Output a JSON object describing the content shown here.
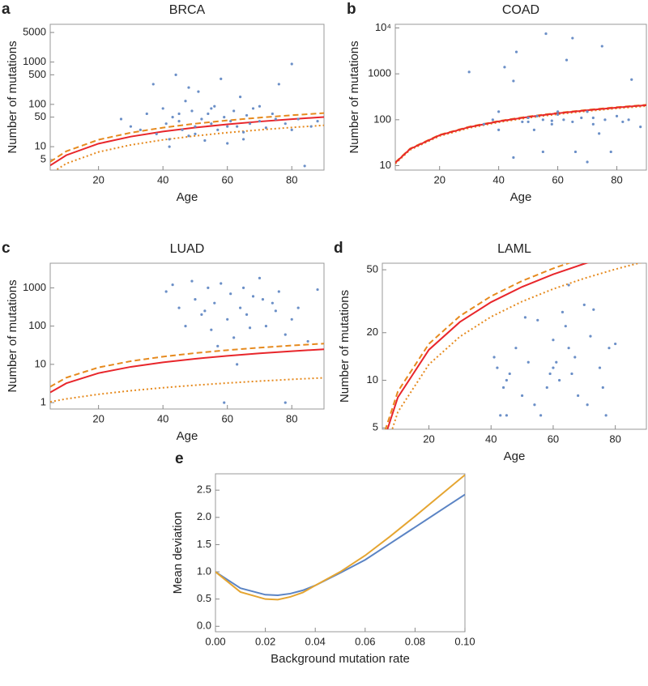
{
  "chart_data": [
    {
      "type": "scatter",
      "panel": "a",
      "title": "BRCA",
      "xlabel": "Age",
      "ylabel": "Number of mutations",
      "log_y": true,
      "color": "#6b8fc7",
      "x": [
        27,
        30,
        33,
        35,
        37,
        38,
        40,
        41,
        42,
        43,
        44,
        45,
        46,
        47,
        48,
        49,
        50,
        51,
        52,
        53,
        54,
        55,
        56,
        57,
        58,
        59,
        60,
        61,
        62,
        63,
        64,
        65,
        66,
        67,
        68,
        70,
        72,
        74,
        76,
        78,
        80,
        82,
        84,
        86,
        88,
        45,
        50,
        55,
        60,
        65,
        70,
        75,
        80,
        42,
        48
      ],
      "values": [
        45,
        30,
        25,
        60,
        300,
        20,
        80,
        35,
        15,
        50,
        500,
        40,
        25,
        120,
        18,
        70,
        30,
        200,
        45,
        14,
        60,
        35,
        90,
        25,
        400,
        50,
        12,
        40,
        70,
        30,
        150,
        22,
        55,
        35,
        80,
        40,
        28,
        60,
        300,
        35,
        900,
        45,
        3.5,
        30,
        40,
        60,
        20,
        80,
        30,
        15,
        90,
        45,
        25,
        10,
        250
      ],
      "fits": [
        {
          "color": "#e8262b",
          "style": "solid",
          "x": [
            5,
            10,
            20,
            30,
            40,
            50,
            60,
            70,
            80,
            90
          ],
          "values": [
            3.6,
            6.3,
            11.8,
            17.3,
            22.8,
            28.3,
            33.8,
            39.3,
            44.8,
            50.3
          ]
        },
        {
          "color": "#e68a1e",
          "style": "dashed",
          "x": [
            5,
            10,
            20,
            30,
            40,
            50,
            60,
            70,
            80,
            90
          ],
          "values": [
            4.4,
            7.8,
            14.6,
            21.4,
            28.2,
            35,
            41.8,
            48.6,
            55.4,
            62.2
          ]
        },
        {
          "color": "#e68a1e",
          "style": "dotted",
          "x": [
            5,
            10,
            20,
            30,
            40,
            50,
            60,
            70,
            80,
            90
          ],
          "values": [
            2.3,
            4,
            7.5,
            11,
            14.5,
            18,
            21.5,
            25,
            28.5,
            32
          ]
        }
      ],
      "xlim": [
        5,
        90
      ],
      "xticks": [
        20,
        40,
        60,
        80
      ],
      "ylim": [
        2.8,
        7800
      ],
      "yticks": [
        5,
        10,
        50,
        100,
        500,
        1000,
        5000
      ]
    },
    {
      "type": "scatter",
      "panel": "b",
      "title": "COAD",
      "xlabel": "Age",
      "ylabel": "Number of mutations",
      "log_y": true,
      "color": "#6b8fc7",
      "x": [
        30,
        35,
        38,
        40,
        42,
        45,
        46,
        48,
        50,
        52,
        53,
        55,
        56,
        58,
        60,
        62,
        63,
        65,
        66,
        68,
        70,
        72,
        74,
        75,
        76,
        78,
        80,
        82,
        85,
        88,
        45,
        55,
        60,
        65,
        70,
        50,
        58,
        72,
        40,
        84
      ],
      "values": [
        1100,
        80,
        100,
        60,
        1400,
        700,
        3000,
        90,
        110,
        60,
        120,
        100,
        7500,
        80,
        130,
        100,
        2000,
        90,
        20,
        110,
        150,
        80,
        50,
        4000,
        100,
        20,
        120,
        90,
        750,
        70,
        15,
        20,
        150,
        6000,
        12,
        90,
        95,
        110,
        150,
        100
      ],
      "fits": [
        {
          "color": "#e68a1e",
          "style": "dotted",
          "x": [
            5,
            10,
            20,
            30,
            40,
            50,
            60,
            70,
            80,
            90
          ],
          "values": [
            11,
            22,
            44,
            66,
            88,
            110,
            132,
            154,
            176,
            198
          ]
        },
        {
          "color": "#e68a1e",
          "style": "dashed",
          "x": [
            5,
            10,
            20,
            30,
            40,
            50,
            60,
            70,
            80,
            90
          ],
          "values": [
            11.8,
            23.5,
            47,
            70.5,
            94,
            117.5,
            141,
            164.5,
            188,
            211.5
          ]
        },
        {
          "color": "#e8262b",
          "style": "solid",
          "x": [
            5,
            10,
            20,
            30,
            40,
            50,
            60,
            70,
            80,
            90
          ],
          "values": [
            11.5,
            23,
            46,
            69,
            92,
            115,
            138,
            161,
            184,
            207
          ]
        }
      ],
      "xlim": [
        5,
        90
      ],
      "xticks": [
        20,
        40,
        60,
        80
      ],
      "ylim": [
        8,
        12000
      ],
      "yticks": [
        10,
        100,
        1000,
        {
          "value": 10000,
          "label": "10⁴"
        }
      ]
    },
    {
      "type": "scatter",
      "panel": "c",
      "title": "LUAD",
      "xlabel": "Age",
      "ylabel": "Number of mutations",
      "log_y": true,
      "color": "#6b8fc7",
      "x": [
        41,
        43,
        45,
        47,
        49,
        50,
        52,
        54,
        55,
        56,
        58,
        60,
        61,
        62,
        64,
        65,
        66,
        68,
        70,
        72,
        74,
        75,
        76,
        78,
        80,
        82,
        85,
        88,
        59,
        78,
        63,
        57,
        67,
        71,
        53
      ],
      "values": [
        800,
        1200,
        300,
        100,
        1500,
        500,
        200,
        1000,
        80,
        400,
        1300,
        150,
        700,
        50,
        300,
        1000,
        200,
        600,
        1800,
        100,
        400,
        250,
        800,
        60,
        150,
        300,
        40,
        900,
        1,
        1,
        10,
        30,
        90,
        500,
        250
      ],
      "fits": [
        {
          "color": "#e8262b",
          "style": "solid",
          "x": [
            5,
            10,
            20,
            30,
            40,
            50,
            60,
            70,
            80,
            90
          ],
          "values": [
            1.85,
            3.2,
            5.9,
            8.6,
            11.3,
            14,
            16.7,
            19.4,
            22.1,
            24.8
          ]
        },
        {
          "color": "#e68a1e",
          "style": "dashed",
          "x": [
            5,
            10,
            20,
            30,
            40,
            50,
            60,
            70,
            80,
            90
          ],
          "values": [
            2.6,
            4.5,
            8.3,
            12.1,
            15.9,
            19.7,
            23.5,
            27.3,
            31.1,
            34.9
          ]
        },
        {
          "color": "#e68a1e",
          "style": "dotted",
          "x": [
            5,
            10,
            20,
            30,
            40,
            50,
            60,
            70,
            80,
            90
          ],
          "values": [
            1.05,
            1.25,
            1.65,
            2.05,
            2.45,
            2.85,
            3.25,
            3.65,
            4.05,
            4.45
          ]
        }
      ],
      "xlim": [
        5,
        90
      ],
      "xticks": [
        20,
        40,
        60,
        80
      ],
      "ylim": [
        0.68,
        4400
      ],
      "yticks": [
        1,
        10,
        100,
        1000
      ]
    },
    {
      "type": "scatter",
      "panel": "d",
      "title": "LAML",
      "xlabel": "Age",
      "ylabel": "Number of mutations",
      "log_y": true,
      "color": "#6b8fc7",
      "x": [
        41,
        42,
        43,
        44,
        45,
        46,
        48,
        50,
        51,
        52,
        54,
        55,
        56,
        58,
        59,
        60,
        61,
        62,
        63,
        64,
        65,
        66,
        67,
        68,
        70,
        71,
        72,
        73,
        75,
        76,
        77,
        78,
        80,
        45,
        60,
        65
      ],
      "values": [
        14,
        12,
        6,
        9,
        10,
        11,
        16,
        8,
        25,
        13,
        7,
        24,
        6,
        9,
        11,
        18,
        13,
        10,
        27,
        22,
        16,
        11,
        14,
        8,
        30,
        7,
        19,
        28,
        12,
        9,
        6,
        16,
        17,
        6,
        12,
        40
      ],
      "fits": [
        {
          "color": "#e8262b",
          "style": "solid",
          "x": [
            5,
            10,
            20,
            30,
            40,
            50,
            60,
            70,
            80,
            90
          ],
          "values": [
            3.9,
            7.8,
            15.6,
            23.4,
            31.2,
            39,
            46.8,
            54.6,
            62.4,
            70.2
          ]
        },
        {
          "color": "#e68a1e",
          "style": "dashed",
          "x": [
            5,
            10,
            20,
            30,
            40,
            50,
            60,
            70,
            80,
            90
          ],
          "values": [
            4.25,
            8.5,
            17,
            25.5,
            34,
            42.5,
            51,
            59.5,
            68,
            76.5
          ]
        },
        {
          "color": "#e68a1e",
          "style": "dotted",
          "x": [
            5,
            10,
            20,
            30,
            40,
            50,
            60,
            70,
            80,
            90
          ],
          "values": [
            3.15,
            6.3,
            12.6,
            18.9,
            25.2,
            31.5,
            37.8,
            44.1,
            50.4,
            56.7
          ]
        }
      ],
      "xlim": [
        5,
        90
      ],
      "xticks": [
        20,
        40,
        60,
        80
      ],
      "ylim": [
        4.9,
        55
      ],
      "yticks": [
        5,
        10,
        20,
        50
      ]
    },
    {
      "type": "line",
      "panel": "e",
      "xlabel": "Background mutation rate",
      "ylabel": "Mean deviation",
      "log_y": false,
      "x": [
        0,
        0.01,
        0.02,
        0.025,
        0.03,
        0.035,
        0.04,
        0.05,
        0.06,
        0.07,
        0.08,
        0.09,
        0.1
      ],
      "series": [
        {
          "color": "#5b84c4",
          "values": [
            1.0,
            0.7,
            0.58,
            0.57,
            0.6,
            0.66,
            0.75,
            0.98,
            1.22,
            1.52,
            1.82,
            2.12,
            2.42
          ]
        },
        {
          "color": "#e5a531",
          "values": [
            1.0,
            0.63,
            0.5,
            0.49,
            0.54,
            0.62,
            0.75,
            1.0,
            1.3,
            1.65,
            2.02,
            2.4,
            2.78
          ]
        }
      ],
      "xlim": [
        0,
        0.1
      ],
      "xticks": [
        {
          "value": 0,
          "label": "0.00"
        },
        {
          "value": 0.02,
          "label": "0.02"
        },
        {
          "value": 0.04,
          "label": "0.04"
        },
        {
          "value": 0.06,
          "label": "0.06"
        },
        {
          "value": 0.08,
          "label": "0.08"
        },
        {
          "value": 0.1,
          "label": "0.10"
        }
      ],
      "ylim": [
        -0.1,
        2.8
      ],
      "yticks": [
        {
          "value": 0,
          "label": "0.0"
        },
        {
          "value": 0.5,
          "label": "0.5"
        },
        {
          "value": 1,
          "label": "1.0"
        },
        {
          "value": 1.5,
          "label": "1.5"
        },
        {
          "value": 2,
          "label": "2.0"
        },
        {
          "value": 2.5,
          "label": "2.5"
        }
      ]
    }
  ]
}
